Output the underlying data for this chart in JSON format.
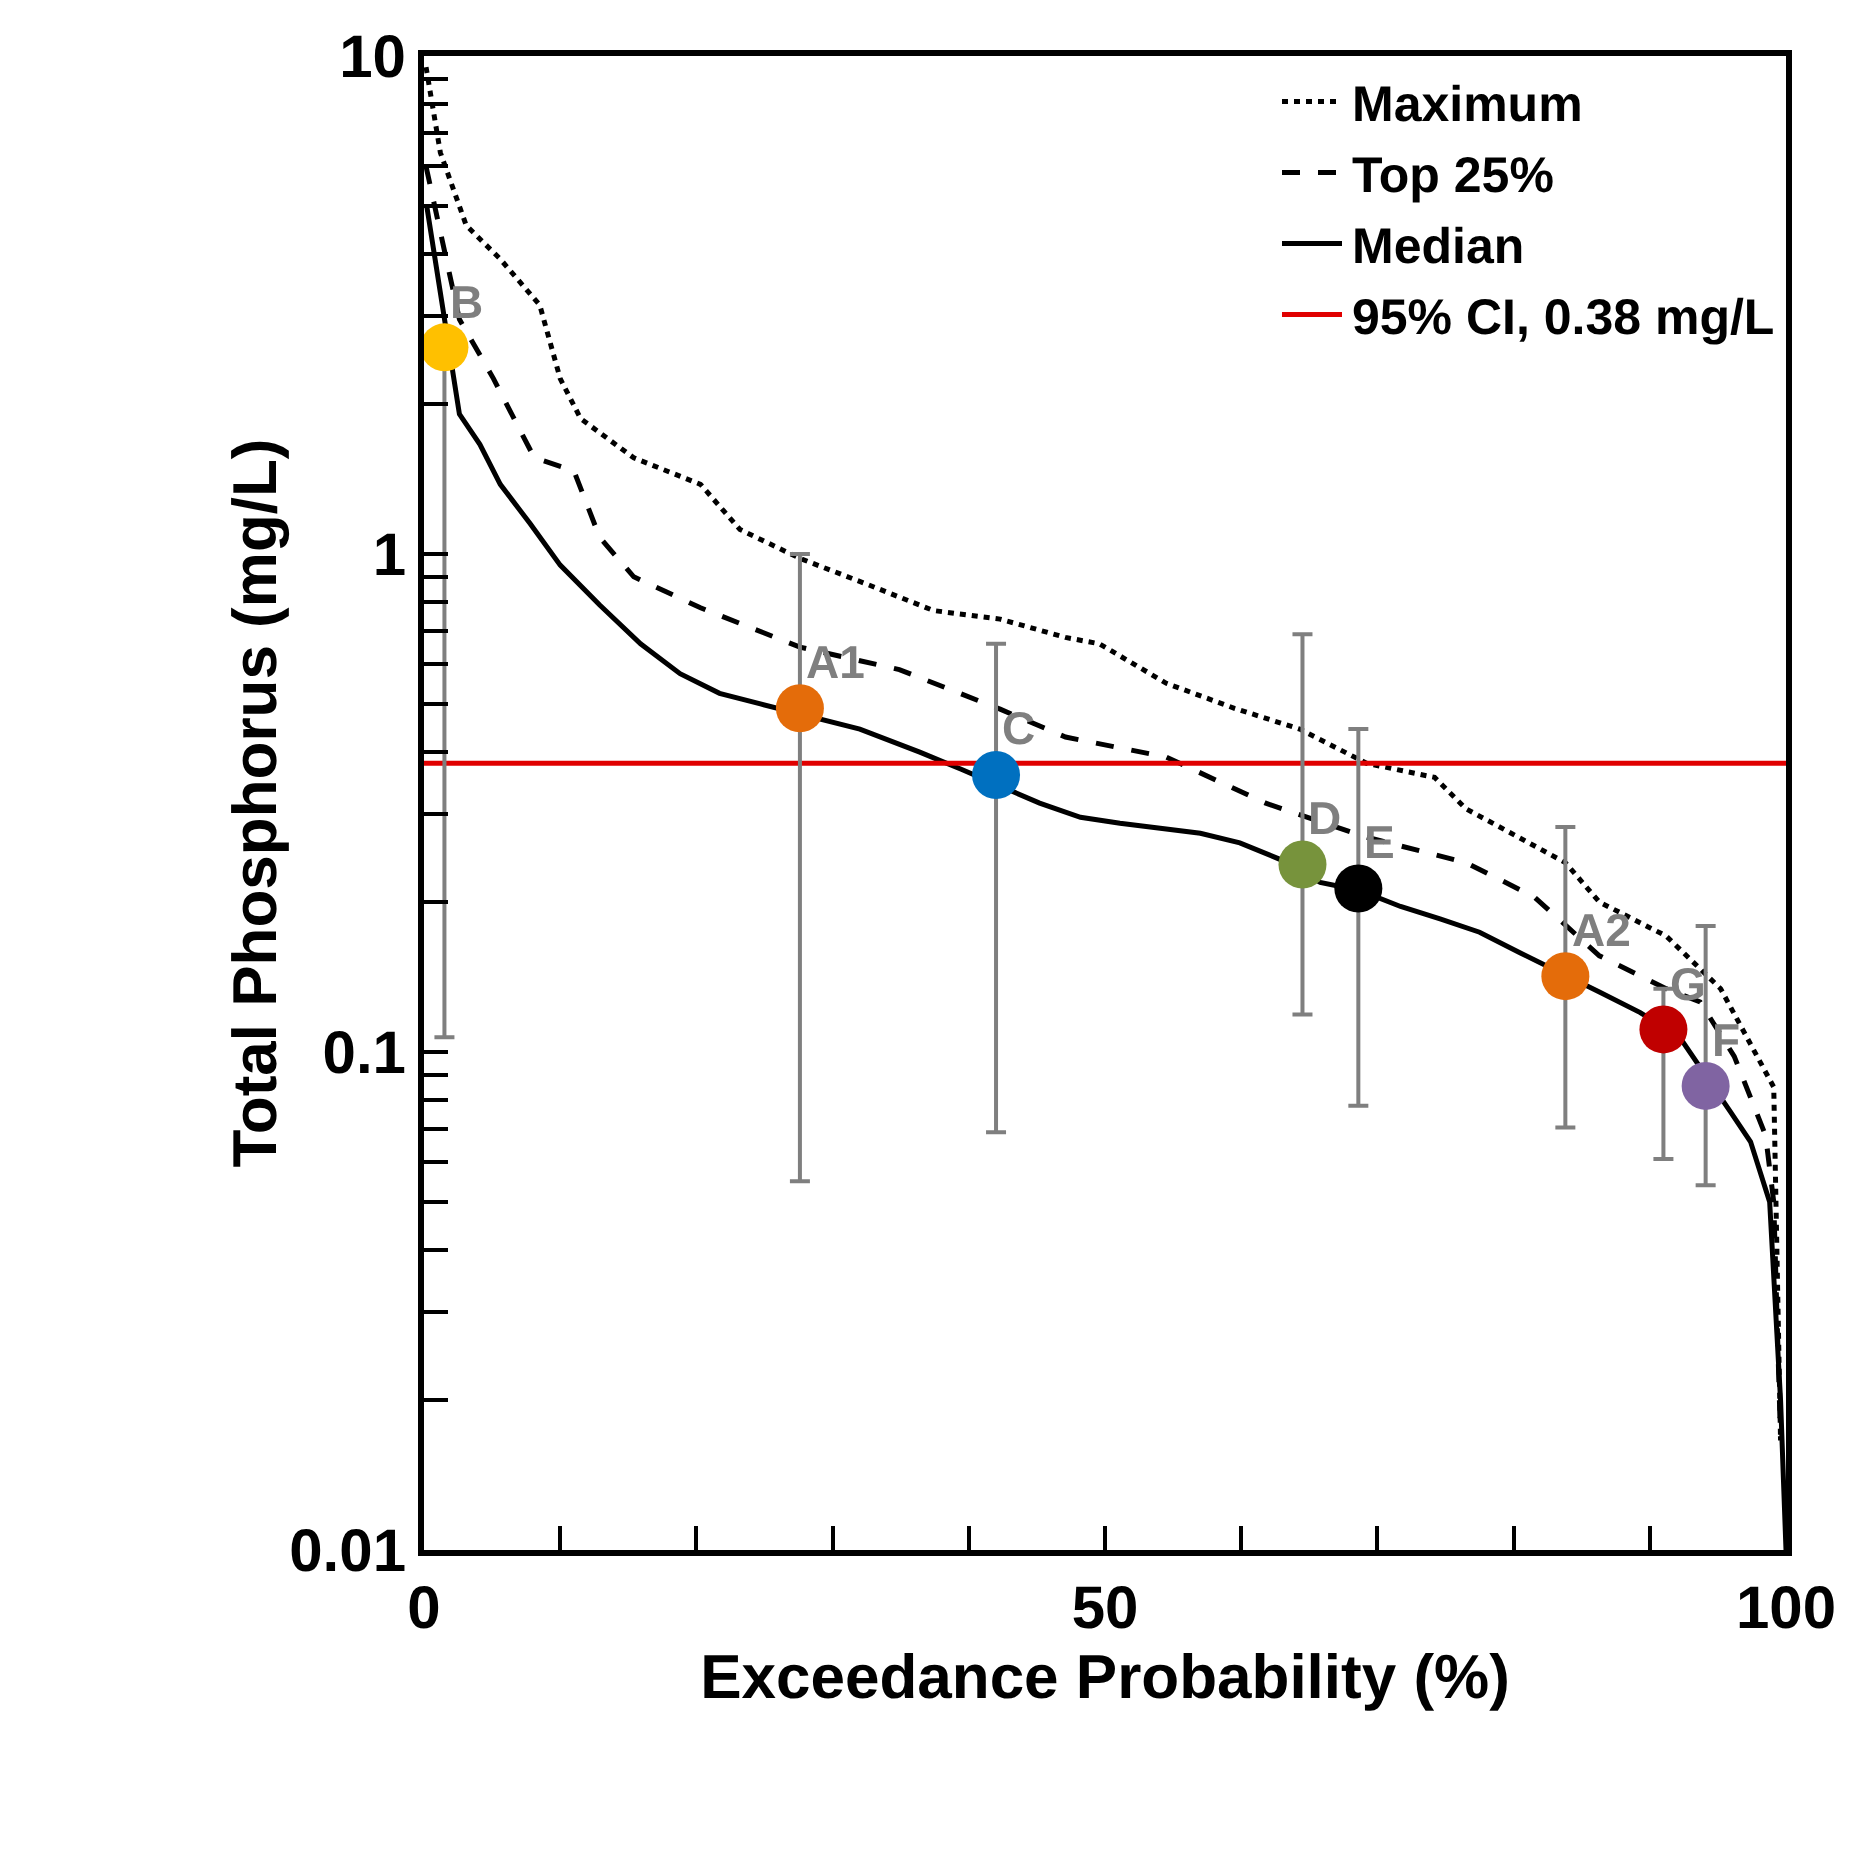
{
  "chart_data": {
    "type": "line",
    "xlabel": "Exceedance Probability (%)",
    "ylabel": "Total Phosphorus (mg/L)",
    "ref_lines": [
      {
        "axis": "y",
        "value": 0.38,
        "label": "95% CI, 0.38 mg/L",
        "color": "#e00000",
        "line_style": "solid"
      }
    ],
    "log": "y",
    "grid": false,
    "legend": "top right",
    "xlim": [
      0,
      100
    ],
    "xticks": [
      0,
      {
        "value": 10,
        "label": null
      },
      {
        "value": 20,
        "label": null
      },
      {
        "value": 30,
        "label": null
      },
      {
        "value": 40,
        "label": null
      },
      50,
      {
        "value": 60,
        "label": null
      },
      {
        "value": 70,
        "label": null
      },
      {
        "value": 80,
        "label": null
      },
      {
        "value": 90,
        "label": null
      },
      100
    ],
    "ylim": [
      0.01,
      10
    ],
    "yticks": [
      0.01,
      {
        "value": 0.02,
        "label": null
      },
      {
        "value": 0.03,
        "label": null
      },
      {
        "value": 0.04,
        "label": null
      },
      {
        "value": 0.05,
        "label": null
      },
      {
        "value": 0.06,
        "label": null
      },
      {
        "value": 0.07,
        "label": null
      },
      {
        "value": 0.08,
        "label": null
      },
      {
        "value": 0.09,
        "label": null
      },
      0.1,
      {
        "value": 0.2,
        "label": null
      },
      {
        "value": 0.3,
        "label": null
      },
      {
        "value": 0.4,
        "label": null
      },
      {
        "value": 0.5,
        "label": null
      },
      {
        "value": 0.6,
        "label": null
      },
      {
        "value": 0.7,
        "label": null
      },
      {
        "value": 0.8,
        "label": null
      },
      {
        "value": 0.9,
        "label": null
      },
      1,
      {
        "value": 2,
        "label": null
      },
      {
        "value": 3,
        "label": null
      },
      {
        "value": 4,
        "label": null
      },
      {
        "value": 5,
        "label": null
      },
      {
        "value": 6,
        "label": null
      },
      {
        "value": 7,
        "label": null
      },
      {
        "value": 8,
        "label": null
      },
      {
        "value": 9,
        "label": null
      },
      10
    ],
    "series": [
      {
        "name": "Maximum",
        "type": "line",
        "line_style": "dotted",
        "marker": "none",
        "color": "#000000",
        "x": [
          0.15,
          1.2,
          3.1,
          5.6,
          8.5,
          10.0,
          11.5,
          15.4,
          20.3,
          23.2,
          27.6,
          32.5,
          37.4,
          42.3,
          47.1,
          49.6,
          54.5,
          59.5,
          64.3,
          69.2,
          74.2,
          76.5,
          83.8,
          86.3,
          91.2,
          95.2,
          99.1,
          99.6
        ],
        "values": [
          9.5,
          6.4,
          4.57,
          3.91,
          3.16,
          2.25,
          1.87,
          1.56,
          1.38,
          1.12,
          0.98,
          0.87,
          0.77,
          0.74,
          0.68,
          0.66,
          0.55,
          0.49,
          0.445,
          0.38,
          0.356,
          0.308,
          0.24,
          0.2,
          0.171,
          0.134,
          0.085,
          0.0166
        ]
      },
      {
        "name": "Top 25%",
        "type": "line",
        "line_style": "dashed",
        "marker": "none",
        "color": "#000000",
        "x": [
          0.15,
          2.6,
          5.1,
          8.1,
          11.0,
          12.9,
          15.4,
          20.3,
          27.6,
          34.9,
          42.3,
          47.1,
          54.5,
          61.8,
          69.2,
          76.5,
          81.5,
          86.3,
          91.2,
          93.7,
          96.2,
          98.5,
          99.1,
          99.6
        ],
        "values": [
          6.0,
          2.96,
          2.25,
          1.56,
          1.47,
          1.08,
          0.9,
          0.78,
          0.65,
          0.586,
          0.488,
          0.429,
          0.391,
          0.316,
          0.27,
          0.24,
          0.205,
          0.156,
          0.134,
          0.126,
          0.098,
          0.068,
          0.05,
          0.0166
        ]
      },
      {
        "name": "Median",
        "type": "line",
        "line_style": "solid",
        "marker": "none",
        "color": "#000000",
        "x": [
          0.2,
          2.6,
          4.1,
          5.6,
          7.8,
          10,
          12.9,
          15.9,
          18.8,
          21.7,
          24.7,
          32,
          36.4,
          39.4,
          45.2,
          48.2,
          51.1,
          57,
          59.9,
          62.8,
          65.8,
          68.7,
          71.7,
          74.6,
          77.5,
          80.5,
          86.3,
          89.3,
          92.2,
          95.9,
          97.4,
          98.8,
          99.6,
          100
        ],
        "values": [
          5.0,
          1.91,
          1.66,
          1.38,
          1.15,
          0.95,
          0.79,
          0.66,
          0.575,
          0.525,
          0.5,
          0.445,
          0.4,
          0.37,
          0.316,
          0.296,
          0.288,
          0.275,
          0.263,
          0.244,
          0.219,
          0.211,
          0.196,
          0.185,
          0.174,
          0.158,
          0.132,
          0.12,
          0.107,
          0.076,
          0.066,
          0.05,
          0.02,
          0.01
        ]
      },
      {
        "type": "scatter",
        "marker": "circle",
        "color": "#ffc000",
        "x": [
          1.5
        ],
        "values": [
          2.6
        ],
        "errors": [
          [
            0.107,
            2.6
          ]
        ]
      },
      {
        "type": "scatter",
        "marker": "circle",
        "color": "#e46c0a",
        "x": [
          27.6
        ],
        "values": [
          0.49
        ],
        "errors": [
          [
            0.055,
            1.0
          ]
        ]
      },
      {
        "type": "scatter",
        "marker": "circle",
        "color": "#0070c0",
        "x": [
          42.0
        ],
        "values": [
          0.36
        ],
        "errors": [
          [
            0.069,
            0.66
          ]
        ]
      },
      {
        "type": "scatter",
        "marker": "circle",
        "color": "#77933c",
        "x": [
          64.5
        ],
        "values": [
          0.238
        ],
        "errors": [
          [
            0.119,
            0.69
          ]
        ]
      },
      {
        "type": "scatter",
        "marker": "circle",
        "color": "#000000",
        "x": [
          68.6
        ],
        "values": [
          0.213
        ],
        "errors": [
          [
            0.078,
            0.445
          ]
        ]
      },
      {
        "type": "scatter",
        "marker": "circle",
        "color": "#e46c0a",
        "x": [
          83.8
        ],
        "values": [
          0.142
        ],
        "errors": [
          [
            0.0705,
            0.283
          ]
        ]
      },
      {
        "type": "scatter",
        "marker": "circle",
        "color": "#c00000",
        "x": [
          91.0
        ],
        "values": [
          0.111
        ],
        "errors": [
          [
            0.061,
            0.134
          ]
        ]
      },
      {
        "type": "scatter",
        "marker": "circle",
        "color": "#8064a2",
        "x": [
          94.1
        ],
        "values": [
          0.0855
        ],
        "errors": [
          [
            0.054,
            0.179
          ]
        ]
      }
    ],
    "annotations": [
      {
        "text": "B",
        "x": 1.5,
        "y": 2.6
      },
      {
        "text": "A1",
        "x": 27.6,
        "y": 0.49
      },
      {
        "text": "C",
        "x": 42.0,
        "y": 0.36
      },
      {
        "text": "D",
        "x": 64.5,
        "y": 0.238
      },
      {
        "text": "E",
        "x": 68.6,
        "y": 0.213
      },
      {
        "text": "A2",
        "x": 83.8,
        "y": 0.142
      },
      {
        "text": "G",
        "x": 91.0,
        "y": 0.111
      },
      {
        "text": "F",
        "x": 94.1,
        "y": 0.0855
      }
    ]
  }
}
